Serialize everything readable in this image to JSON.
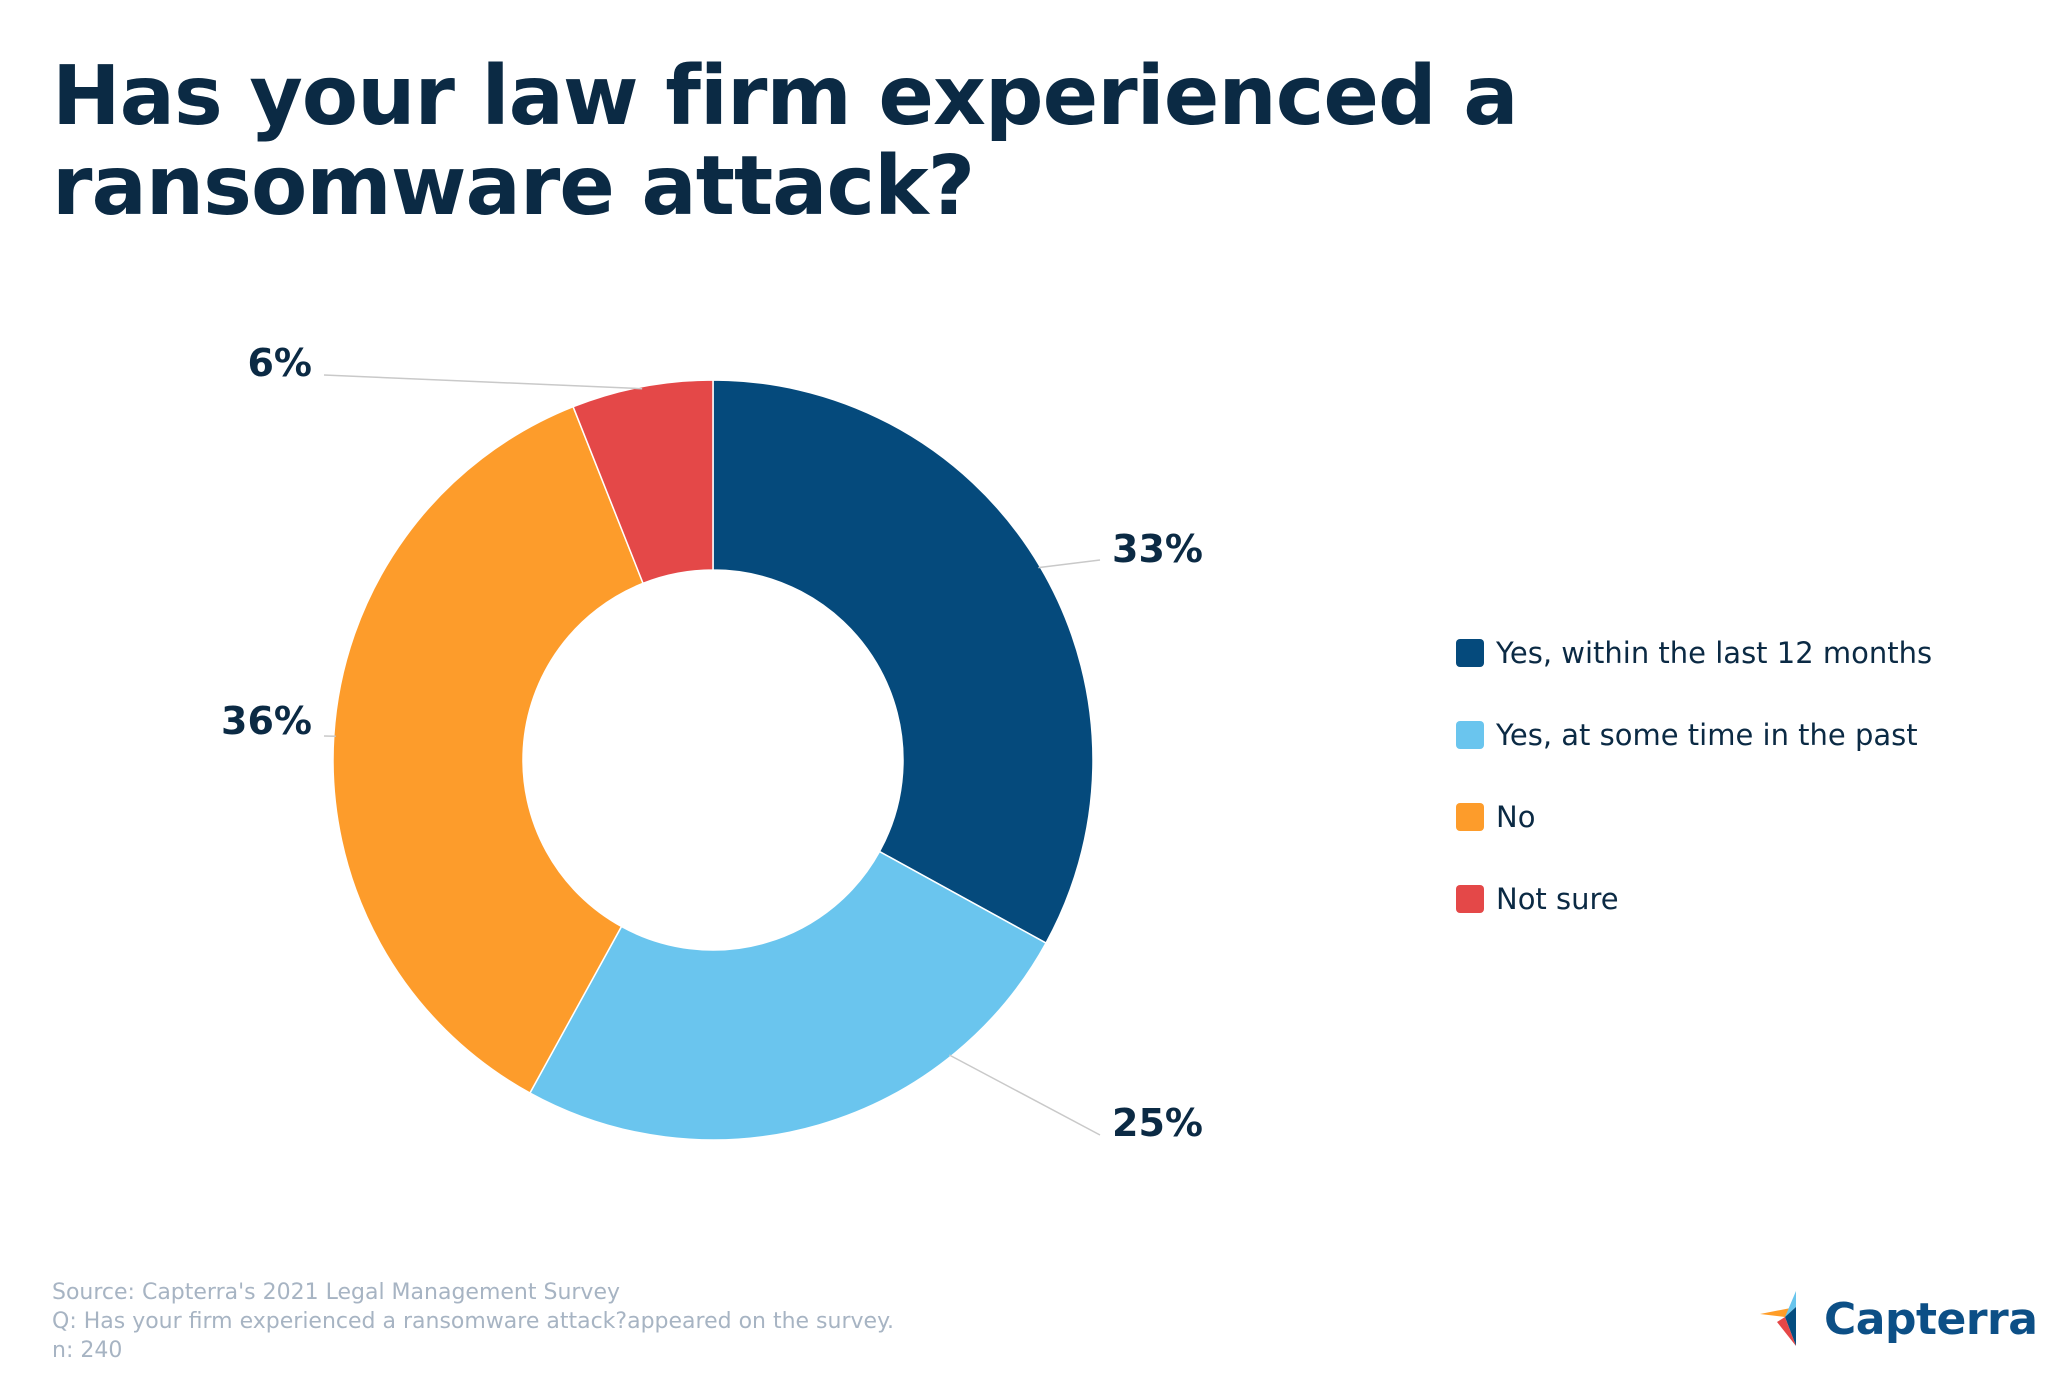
{
  "title": "Has your law firm experienced a ransomware attack?",
  "chart_data": {
    "type": "pie",
    "variant": "donut",
    "title": "Has your law firm experienced a ransomware attack?",
    "categories": [
      "Yes, within the last 12 months",
      "Yes, at some time in the past",
      "No",
      "Not sure"
    ],
    "values": [
      33,
      25,
      36,
      6
    ],
    "value_labels": [
      "33%",
      "25%",
      "36%",
      "6%"
    ],
    "colors": [
      "#054a7c",
      "#6ac5ee",
      "#fd9c2b",
      "#e44848"
    ],
    "legend_position": "right"
  },
  "legend": {
    "items": [
      {
        "label": "Yes, within the last 12 months",
        "color": "#054a7c"
      },
      {
        "label": "Yes, at some time in the past",
        "color": "#6ac5ee"
      },
      {
        "label": "No",
        "color": "#fd9c2b"
      },
      {
        "label": "Not sure",
        "color": "#e44848"
      }
    ]
  },
  "footer": {
    "source": "Source: Capterra's 2021 Legal Management Survey",
    "question": "Q: Has your firm experienced a ransomware attack?appeared on the survey.",
    "sample": "n: 240"
  },
  "brand": {
    "name": "Capterra",
    "logo_icon": "capterra-arrow-logo-icon",
    "colors": [
      "#ff9d28",
      "#68c5ed",
      "#044d80",
      "#e54747"
    ]
  }
}
